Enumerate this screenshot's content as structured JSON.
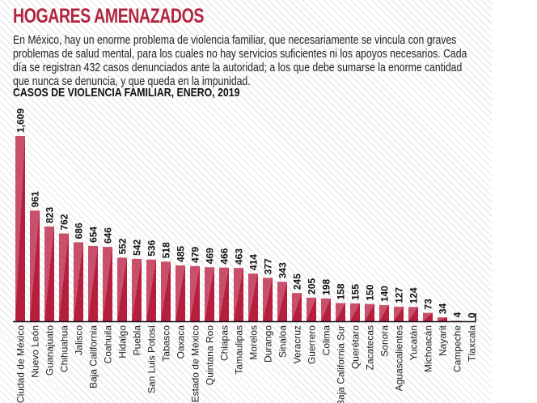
{
  "header": {
    "title": "HOGARES AMENAZADOS",
    "body_lines": [
      "En México, hay un enorme problema de violencia familiar, que necesariamente se vincula con graves",
      "problemas de salud mental, para los cuales no hay servicios suficientes ni los apoyos necesarios. Cada",
      "día se registran 432 casos denunciados ante la autoridad; a los que debe sumarse la enorme cantidad",
      "que nunca se denuncia, y que queda en la impunidad."
    ]
  },
  "colors": {
    "accent": "#b2233f",
    "bar_light": "#c9506b",
    "bar_dark": "#b51e3c",
    "axis": "#111111",
    "text": "#1a1a1a"
  },
  "chart_data": {
    "type": "bar",
    "title": "CASOS DE VIOLENCIA FAMILIAR, ENERO, 2019",
    "xlabel": "",
    "ylabel": "",
    "ylim": [
      0,
      1609
    ],
    "grid": false,
    "categories": [
      "Ciudad de México",
      "Nuevo León",
      "Guanajuato",
      "Chihuahua",
      "Jalisco",
      "Baja California",
      "Coahuila",
      "Hidalgo",
      "Puebla",
      "San Luis Potosí",
      "Tabasco",
      "Oaxaca",
      "Estado de México",
      "Quintana Roo",
      "Chiapas",
      "Tamaulipas",
      "Morelos",
      "Durango",
      "Sinaloa",
      "Veracruz",
      "Guerrero",
      "Colima",
      "Baja California Sur",
      "Querétaro",
      "Zacatecas",
      "Sonora",
      "Aguascalientes",
      "Yucatán",
      "Michoacán",
      "Nayarit",
      "Campeche",
      "Tlaxcala"
    ],
    "values": [
      1609,
      961,
      823,
      762,
      686,
      654,
      646,
      552,
      542,
      536,
      518,
      485,
      479,
      469,
      466,
      463,
      414,
      377,
      343,
      245,
      205,
      198,
      158,
      155,
      150,
      140,
      127,
      124,
      73,
      34,
      4,
      0
    ],
    "value_labels": [
      "1,609",
      "961",
      "823",
      "762",
      "686",
      "654",
      "646",
      "552",
      "542",
      "536",
      "518",
      "485",
      "479",
      "469",
      "466",
      "463",
      "414",
      "377",
      "343",
      "245",
      "205",
      "198",
      "158",
      "155",
      "150",
      "140",
      "127",
      "124",
      "73",
      "34",
      "4",
      "0"
    ]
  }
}
